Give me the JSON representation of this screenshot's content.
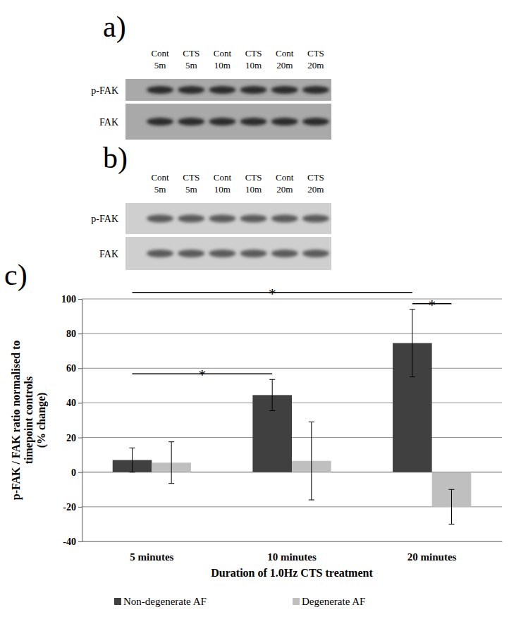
{
  "blots": [
    {
      "label": "a)",
      "lanes": [
        [
          "Cont",
          "5m"
        ],
        [
          "CTS",
          "5m"
        ],
        [
          "Cont",
          "10m"
        ],
        [
          "CTS",
          "10m"
        ],
        [
          "Cont",
          "20m"
        ],
        [
          "CTS",
          "20m"
        ]
      ],
      "rows": [
        "p-FAK",
        "FAK"
      ]
    },
    {
      "label": "b)",
      "lanes": [
        [
          "Cont",
          "5m"
        ],
        [
          "CTS",
          "5m"
        ],
        [
          "Cont",
          "10m"
        ],
        [
          "CTS",
          "10m"
        ],
        [
          "Cont",
          "20m"
        ],
        [
          "CTS",
          "20m"
        ]
      ],
      "rows": [
        "p-FAK",
        "FAK"
      ]
    }
  ],
  "chart_label": "c)",
  "chart_data": {
    "type": "bar",
    "xlabel": "Duration of 1.0Hz CTS treatment",
    "ylabel": "p-FAK / FAK ratio normalised to\ntimepoint controls\n(% change)",
    "categories": [
      "5 minutes",
      "10 minutes",
      "20 minutes"
    ],
    "series": [
      {
        "name": "Non-degenerate AF",
        "color": "#404040",
        "values": [
          7,
          44.5,
          74.5
        ],
        "errors": [
          7,
          9,
          19.5
        ]
      },
      {
        "name": "Degenerate AF",
        "color": "#bfbfbf",
        "values": [
          5.5,
          6.5,
          -20
        ],
        "errors": [
          12,
          22.5,
          10
        ]
      }
    ],
    "ylim": [
      -40,
      100
    ],
    "yticks": [
      -40,
      -20,
      0,
      20,
      40,
      60,
      80,
      100
    ],
    "grid": true,
    "legend": "bottom",
    "annotations": [
      {
        "label": "*",
        "from": [
          0,
          0
        ],
        "to": [
          2,
          0
        ]
      },
      {
        "label": "*",
        "from": [
          0,
          0
        ],
        "to": [
          1,
          0
        ]
      },
      {
        "label": "*",
        "from": [
          2,
          0
        ],
        "to": [
          2,
          1
        ]
      }
    ]
  }
}
